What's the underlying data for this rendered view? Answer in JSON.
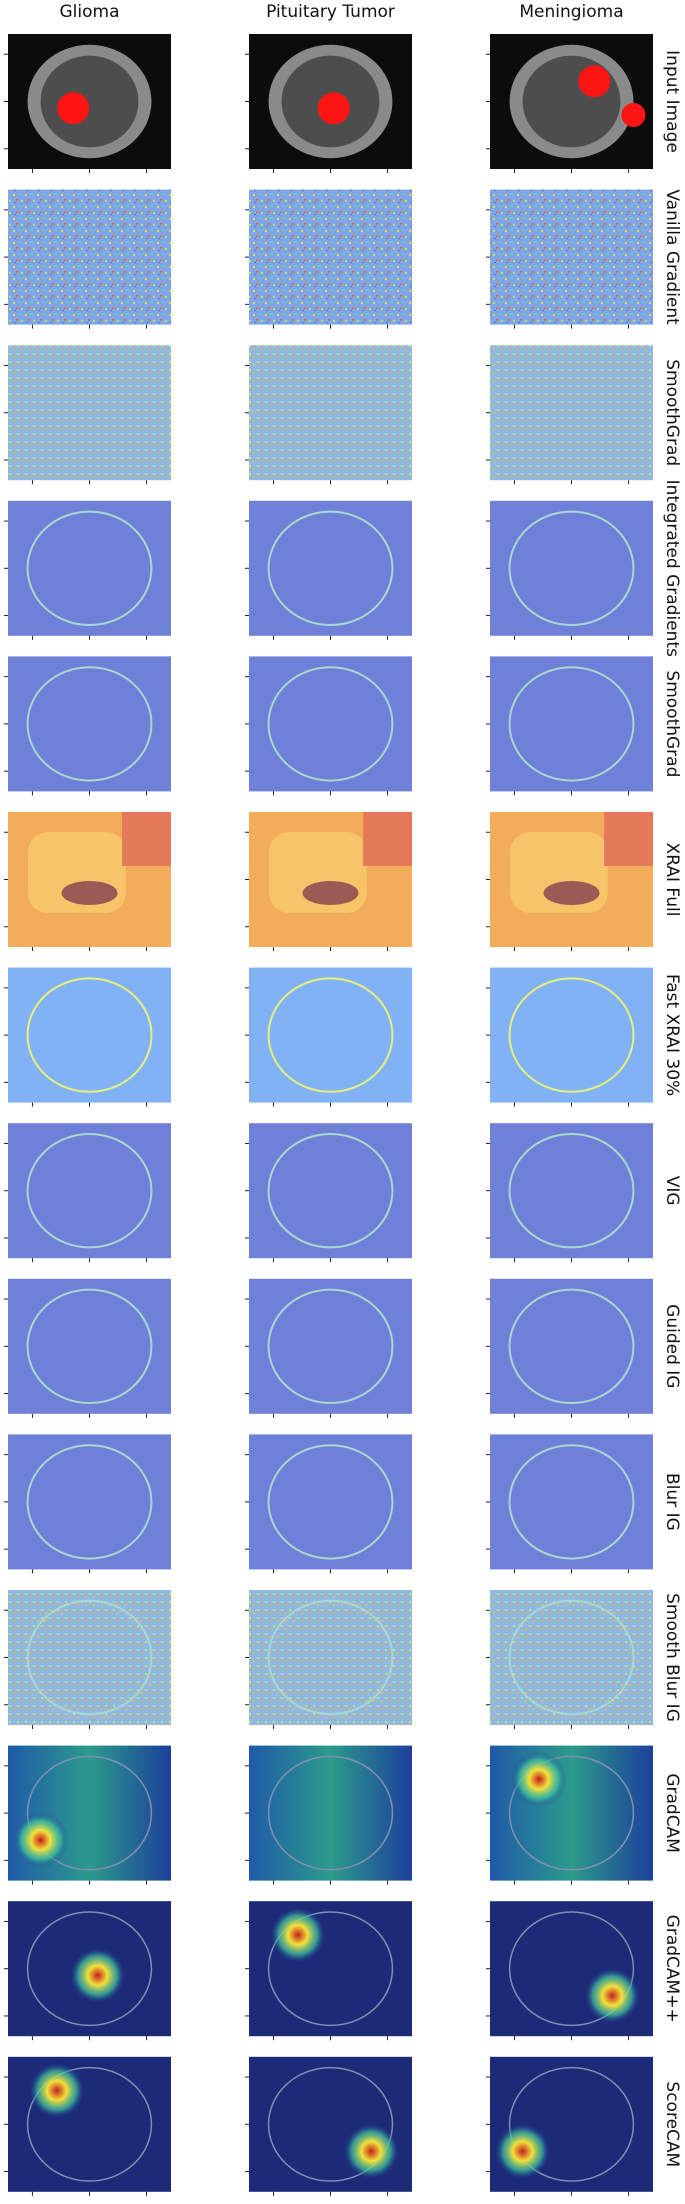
{
  "columns": [
    "Glioma",
    "Pituitary Tumor",
    "Meningioma"
  ],
  "rows": [
    "Input Image",
    "Vanilla Gradient",
    "SmoothGrad",
    "Integrated Gradients",
    "SmoothGrad",
    "XRAI Full",
    "Fast XRAI 30%",
    "VIG",
    "Guided IG",
    "Blur IG",
    "Smooth Blur IG",
    "GradCAM",
    "GradCAM++",
    "ScoreCAM"
  ]
}
